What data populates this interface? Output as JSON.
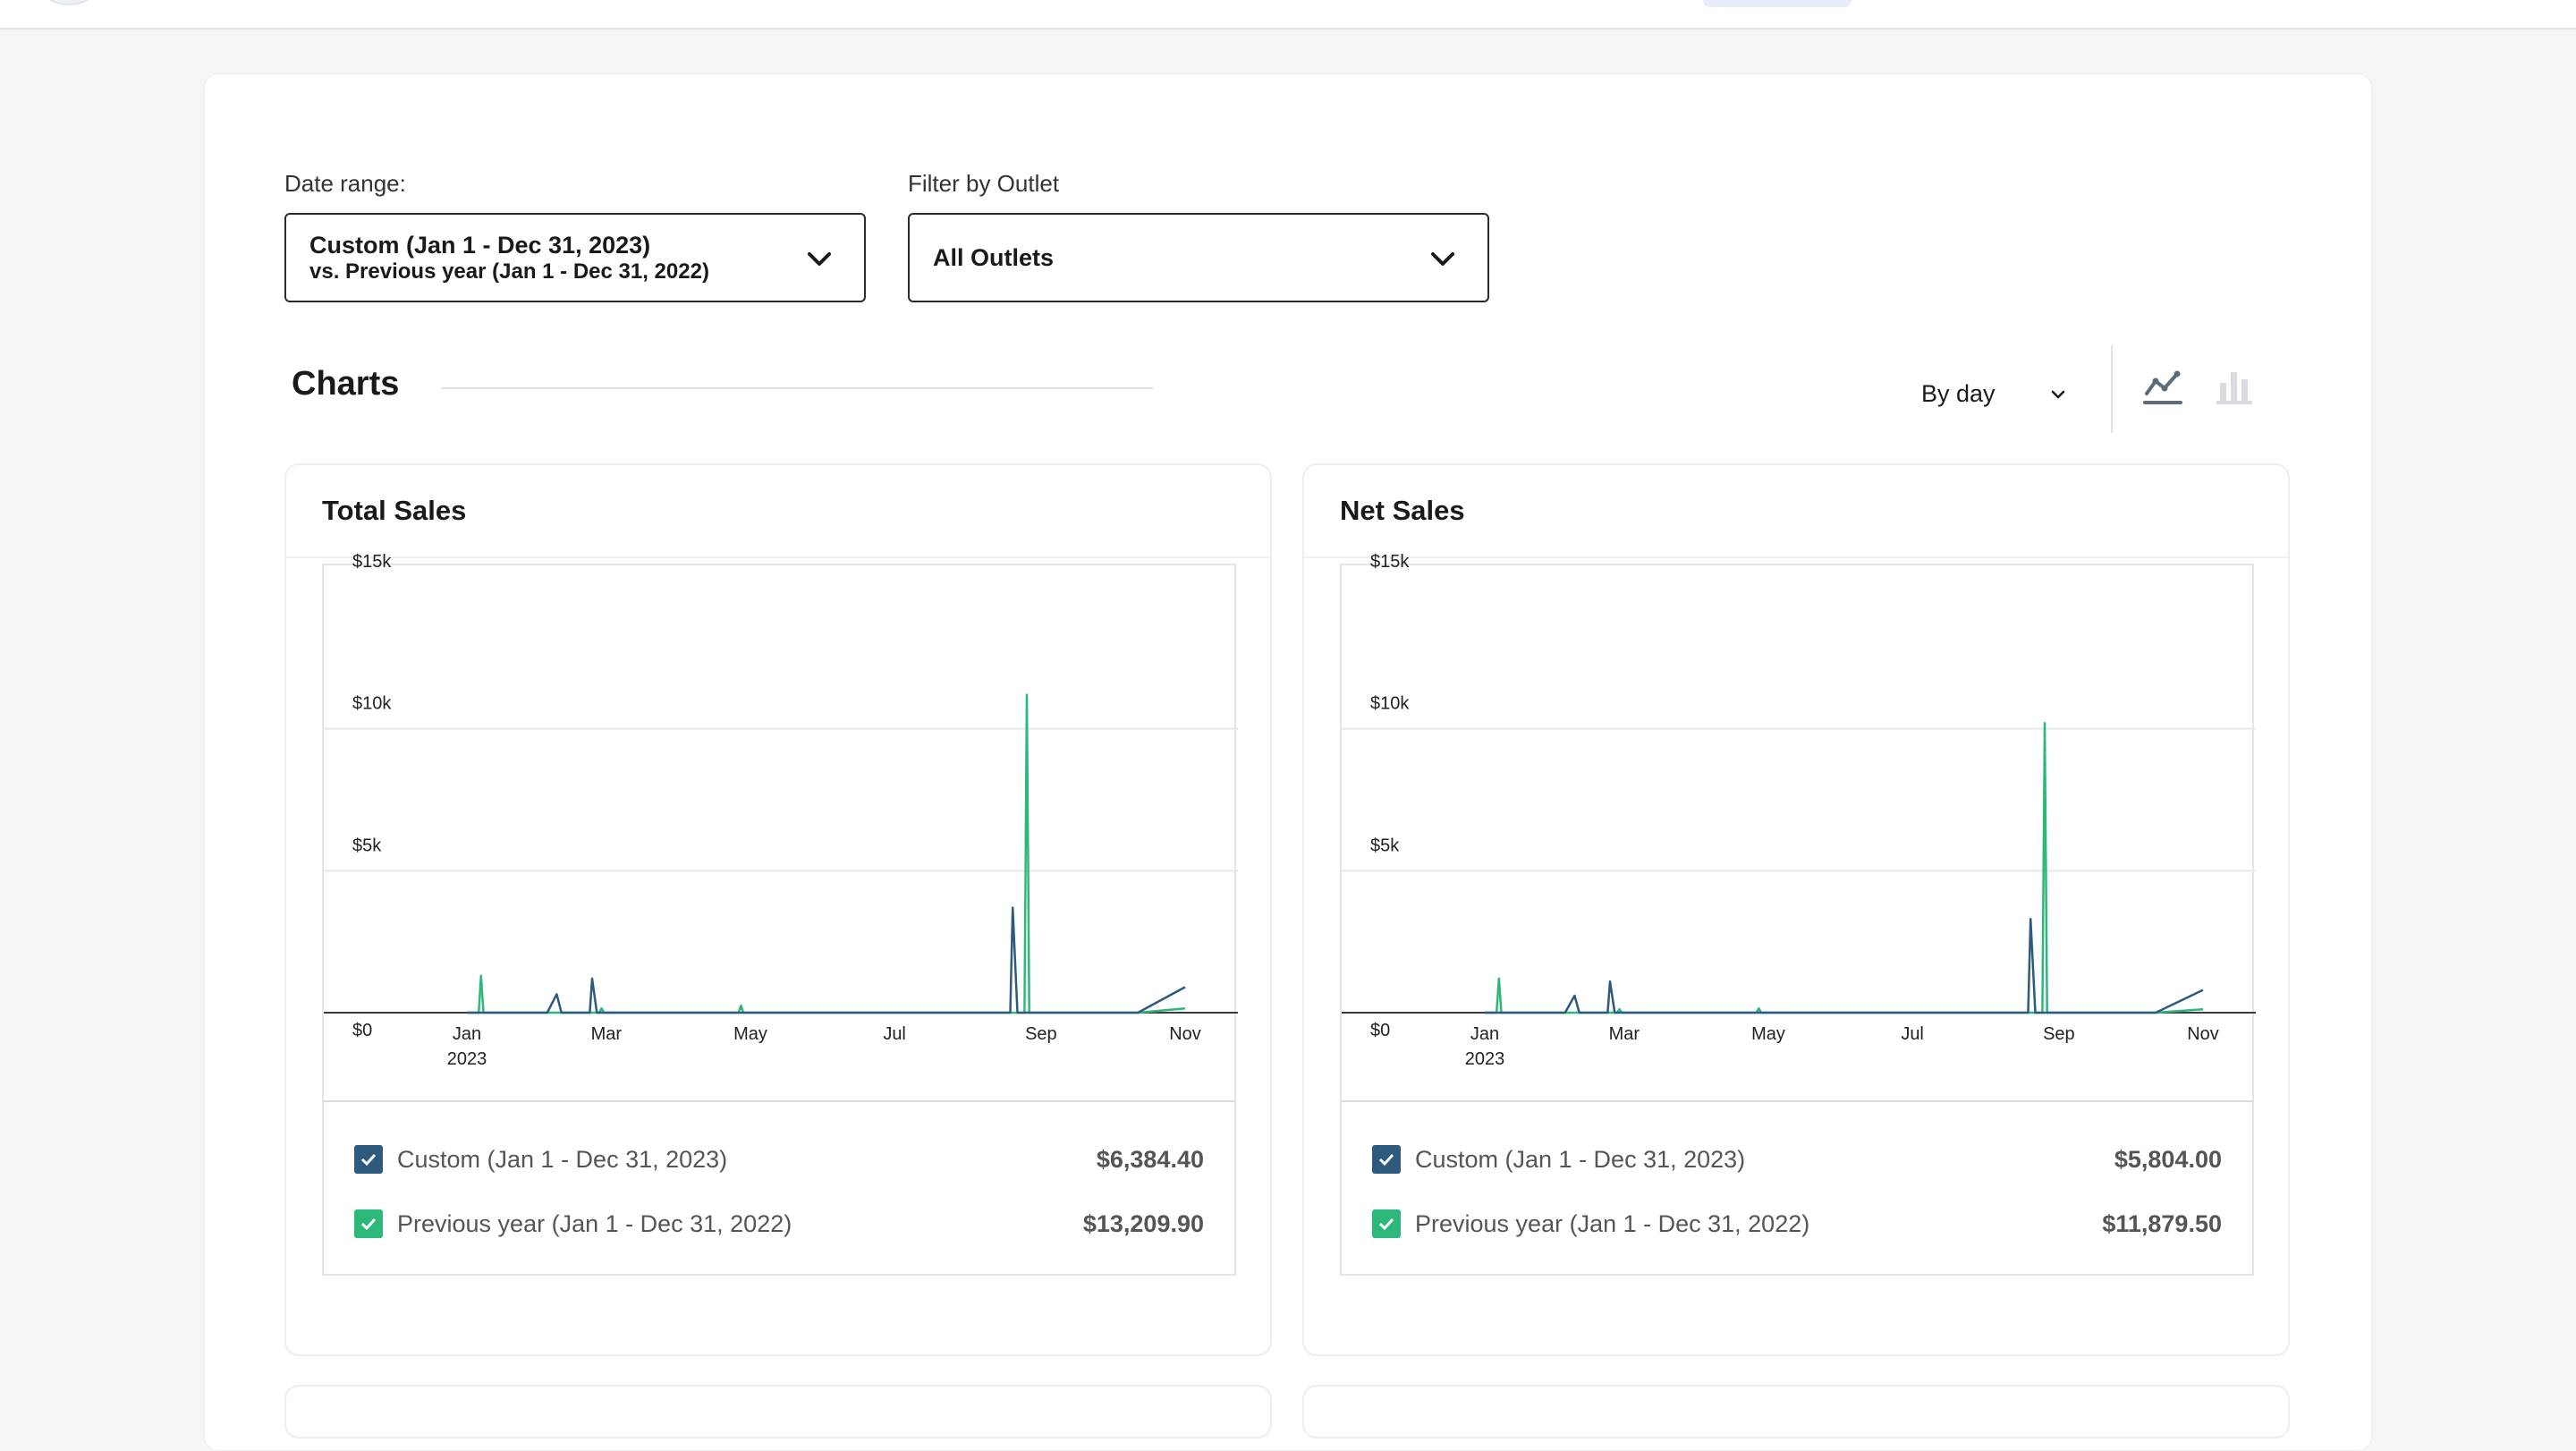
{
  "filters": {
    "date_range_label": "Date range:",
    "date_range_line1": "Custom (Jan 1 - Dec 31, 2023)",
    "date_range_line2": "vs. Previous year (Jan 1 - Dec 31, 2022)",
    "outlet_label": "Filter by Outlet",
    "outlet_value": "All Outlets"
  },
  "charts_section": {
    "title": "Charts",
    "interval": "By day",
    "view_icons": [
      "line-chart-icon",
      "bar-chart-icon"
    ]
  },
  "colors": {
    "current": "#2e5a7e",
    "previous": "#2db87a",
    "gridline": "#e6e8eb"
  },
  "cards": [
    {
      "title": "Total Sales",
      "legend": [
        {
          "label": "Custom (Jan 1 - Dec 31, 2023)",
          "value": "$6,384.40",
          "color": "#2e5a7e"
        },
        {
          "label": "Previous year (Jan 1 - Dec 31, 2022)",
          "value": "$13,209.90",
          "color": "#2db87a"
        }
      ]
    },
    {
      "title": "Net Sales",
      "legend": [
        {
          "label": "Custom (Jan 1 - Dec 31, 2023)",
          "value": "$5,804.00",
          "color": "#2e5a7e"
        },
        {
          "label": "Previous year (Jan 1 - Dec 31, 2022)",
          "value": "$11,879.50",
          "color": "#2db87a"
        }
      ]
    }
  ],
  "chart_data": [
    {
      "type": "line",
      "title": "Total Sales",
      "xlabel": "",
      "ylabel": "",
      "ylim": [
        0,
        15000
      ],
      "y_ticks": [
        "$0",
        "$5k",
        "$10k",
        "$15k"
      ],
      "x_ticks": [
        "Jan",
        "Mar",
        "May",
        "Jul",
        "Sep",
        "Nov"
      ],
      "x_tick_year": "2023",
      "xlim": [
        "2023-01-01",
        "2023-11-01"
      ],
      "grid": true,
      "series": [
        {
          "name": "Custom (Jan 1 - Dec 31, 2023)",
          "points": [
            [
              "2023-01-01",
              0
            ],
            [
              "2023-02-04",
              0
            ],
            [
              "2023-02-08",
              650
            ],
            [
              "2023-02-10",
              0
            ],
            [
              "2023-02-22",
              0
            ],
            [
              "2023-02-23",
              1200
            ],
            [
              "2023-02-25",
              0
            ],
            [
              "2023-08-19",
              0
            ],
            [
              "2023-08-20",
              3700
            ],
            [
              "2023-08-22",
              0
            ],
            [
              "2023-10-12",
              0
            ],
            [
              "2023-11-01",
              900
            ]
          ]
        },
        {
          "name": "Previous year (Jan 1 - Dec 31, 2022)",
          "points": [
            [
              "2023-01-01",
              0
            ],
            [
              "2023-01-06",
              0
            ],
            [
              "2023-01-07",
              1300
            ],
            [
              "2023-01-08",
              0
            ],
            [
              "2023-02-26",
              0
            ],
            [
              "2023-02-27",
              150
            ],
            [
              "2023-02-28",
              0
            ],
            [
              "2023-04-26",
              0
            ],
            [
              "2023-04-27",
              250
            ],
            [
              "2023-04-28",
              0
            ],
            [
              "2023-08-25",
              0
            ],
            [
              "2023-08-26",
              11200
            ],
            [
              "2023-08-27",
              0
            ],
            [
              "2023-10-12",
              0
            ],
            [
              "2023-11-01",
              150
            ]
          ]
        }
      ]
    },
    {
      "type": "line",
      "title": "Net Sales",
      "xlabel": "",
      "ylabel": "",
      "ylim": [
        0,
        15000
      ],
      "y_ticks": [
        "$0",
        "$5k",
        "$10k",
        "$15k"
      ],
      "x_ticks": [
        "Jan",
        "Mar",
        "May",
        "Jul",
        "Sep",
        "Nov"
      ],
      "x_tick_year": "2023",
      "xlim": [
        "2023-01-01",
        "2023-11-01"
      ],
      "grid": true,
      "series": [
        {
          "name": "Custom (Jan 1 - Dec 31, 2023)",
          "points": [
            [
              "2023-01-01",
              0
            ],
            [
              "2023-02-04",
              0
            ],
            [
              "2023-02-08",
              600
            ],
            [
              "2023-02-10",
              0
            ],
            [
              "2023-02-22",
              0
            ],
            [
              "2023-02-23",
              1100
            ],
            [
              "2023-02-25",
              0
            ],
            [
              "2023-08-19",
              0
            ],
            [
              "2023-08-20",
              3300
            ],
            [
              "2023-08-22",
              0
            ],
            [
              "2023-10-12",
              0
            ],
            [
              "2023-11-01",
              800
            ]
          ]
        },
        {
          "name": "Previous year (Jan 1 - Dec 31, 2022)",
          "points": [
            [
              "2023-01-01",
              0
            ],
            [
              "2023-01-06",
              0
            ],
            [
              "2023-01-07",
              1200
            ],
            [
              "2023-01-08",
              0
            ],
            [
              "2023-02-26",
              0
            ],
            [
              "2023-02-27",
              120
            ],
            [
              "2023-02-28",
              0
            ],
            [
              "2023-04-26",
              0
            ],
            [
              "2023-04-27",
              150
            ],
            [
              "2023-04-28",
              0
            ],
            [
              "2023-08-25",
              0
            ],
            [
              "2023-08-26",
              10200
            ],
            [
              "2023-08-27",
              0
            ],
            [
              "2023-10-12",
              0
            ],
            [
              "2023-11-01",
              120
            ]
          ]
        }
      ]
    }
  ]
}
